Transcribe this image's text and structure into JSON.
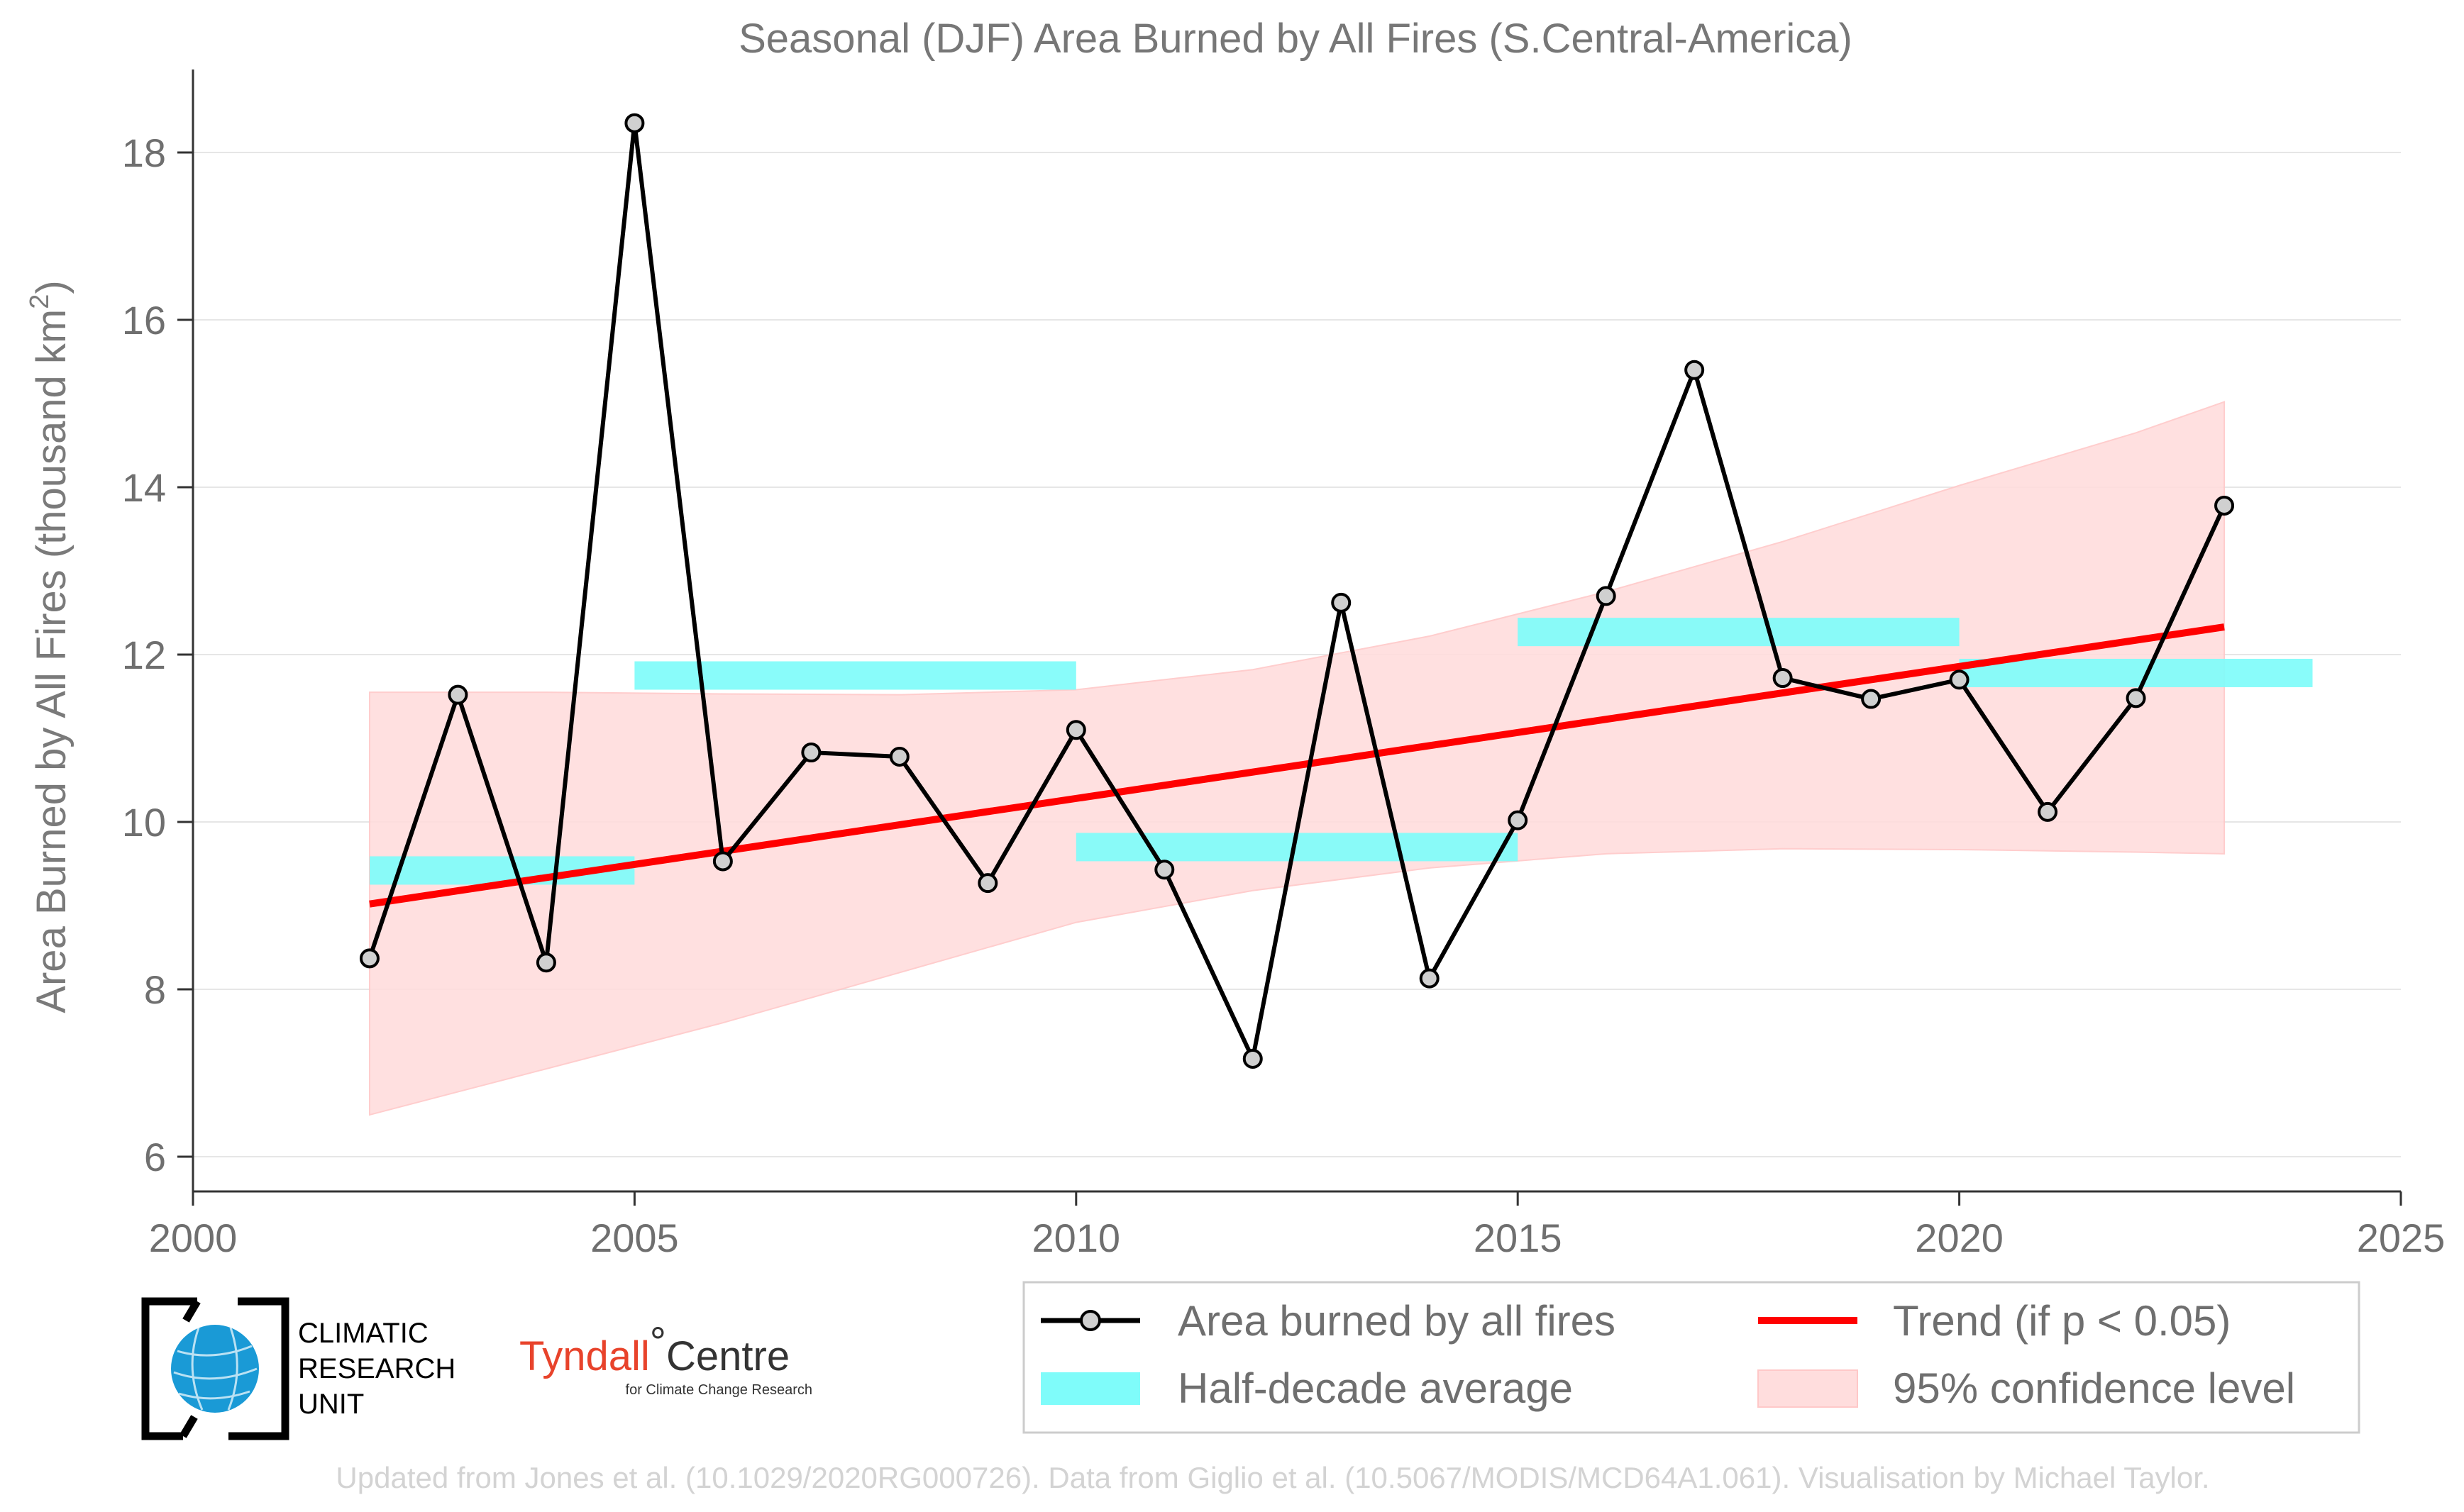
{
  "chart_data": {
    "type": "line",
    "title": "Seasonal (DJF) Area Burned by All Fires (S.Central-America)",
    "ylabel_main": "Area Burned by All Fires (thousand km",
    "ylabel_sup": "2",
    "ylabel_end": ")",
    "xlim": [
      2000,
      2025
    ],
    "ylim": [
      5.6,
      18.8
    ],
    "xticks": [
      2000,
      2005,
      2010,
      2015,
      2020,
      2025
    ],
    "yticks": [
      6,
      8,
      10,
      12,
      14,
      16,
      18
    ],
    "grid": "horizontal",
    "legend_placement": "bottom-right, below plot",
    "colors": {
      "series": "#000000",
      "marker_fill": "#d0d0d0",
      "half_decade": "#7ffcfa",
      "trend": "#ff0000",
      "confidence": "#ffdddd",
      "confidence_edge": "#ffc8c8"
    },
    "series": [
      {
        "name": "Area burned by all fires",
        "x": [
          2002,
          2003,
          2004,
          2005,
          2006,
          2007,
          2008,
          2009,
          2010,
          2011,
          2012,
          2013,
          2014,
          2015,
          2016,
          2017,
          2018,
          2019,
          2020,
          2021,
          2022,
          2023
        ],
        "values": [
          8.37,
          11.52,
          8.32,
          18.35,
          9.53,
          10.83,
          10.78,
          9.27,
          11.1,
          9.43,
          7.17,
          12.62,
          8.13,
          10.02,
          12.7,
          15.4,
          11.72,
          11.47,
          11.7,
          10.12,
          11.48,
          13.78
        ]
      }
    ],
    "half_decade_average": {
      "name": "Half-decade average",
      "segments": [
        {
          "x_start": 2002,
          "x_end": 2005,
          "value": 9.42
        },
        {
          "x_start": 2005,
          "x_end": 2010,
          "value": 11.75
        },
        {
          "x_start": 2010,
          "x_end": 2015,
          "value": 9.7
        },
        {
          "x_start": 2015,
          "x_end": 2020,
          "value": 12.27
        },
        {
          "x_start": 2020,
          "x_end": 2024,
          "value": 11.78
        }
      ]
    },
    "trend": {
      "name": "Trend (if p < 0.05)",
      "x": [
        2002,
        2023
      ],
      "values": [
        9.02,
        12.33
      ]
    },
    "confidence": {
      "name": "95% confidence level",
      "x": [
        2002,
        2004,
        2006,
        2008,
        2010,
        2012,
        2014,
        2016,
        2018,
        2020,
        2022,
        2023
      ],
      "upper": [
        11.55,
        11.55,
        11.53,
        11.52,
        11.58,
        11.82,
        12.22,
        12.75,
        13.35,
        14.02,
        14.65,
        15.02
      ],
      "lower": [
        6.5,
        7.05,
        7.6,
        8.2,
        8.8,
        9.18,
        9.45,
        9.62,
        9.68,
        9.67,
        9.64,
        9.62
      ]
    }
  },
  "legend": {
    "items": [
      {
        "label": "Area burned by all fires"
      },
      {
        "label": "Trend (if p < 0.05)"
      },
      {
        "label": "Half-decade average"
      },
      {
        "label": "95% confidence level"
      }
    ]
  },
  "logos": {
    "cru_line1": "CLIMATIC",
    "cru_line2": "RESEARCH",
    "cru_line3": "UNIT",
    "tyndall_name": "Tyndall",
    "tyndall_degree": "°",
    "tyndall_centre": "Centre",
    "tyndall_sub": "for Climate Change Research"
  },
  "credit": "Updated from Jones et al. (10.1029/2020RG000726). Data from Giglio et al. (10.5067/MODIS/MCD64A1.061). Visualisation by Michael Taylor."
}
